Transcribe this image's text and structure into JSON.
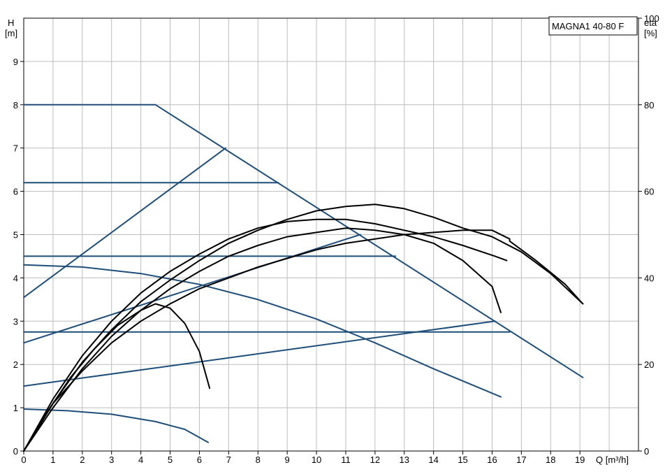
{
  "chart_data": {
    "type": "line",
    "model_label": "MAGNA1 40-80 F",
    "y_label_top": "H",
    "y_label_unit": "[m]",
    "y2_label_top": "eta",
    "y2_label_unit": "[%]",
    "x_label": "Q [m³/h]",
    "xlim": [
      0,
      21
    ],
    "ylim": [
      0,
      10
    ],
    "y2lim": [
      0,
      100
    ],
    "x_ticks": [
      0,
      1,
      2,
      3,
      4,
      5,
      6,
      7,
      8,
      9,
      10,
      11,
      12,
      13,
      14,
      15,
      16,
      17,
      18,
      19
    ],
    "y_ticks": [
      0,
      1,
      2,
      3,
      4,
      5,
      6,
      7,
      8,
      9
    ],
    "y2_ticks": [
      0,
      20,
      40,
      60,
      80,
      100
    ],
    "grid": true,
    "colors": {
      "head_curves": "#1f4e79",
      "efficiency_curves": "#000000"
    },
    "series": [
      {
        "group": "head",
        "points": [
          [
            0,
            8
          ],
          [
            4.5,
            8
          ],
          [
            19.1,
            1.7
          ]
        ]
      },
      {
        "group": "head",
        "points": [
          [
            0,
            6.2
          ],
          [
            8.7,
            6.2
          ]
        ]
      },
      {
        "group": "head",
        "points": [
          [
            0,
            4.5
          ],
          [
            12.7,
            4.5
          ]
        ]
      },
      {
        "group": "head",
        "points": [
          [
            0,
            2.75
          ],
          [
            16.6,
            2.75
          ]
        ]
      },
      {
        "group": "head",
        "points": [
          [
            0,
            3.55
          ],
          [
            6.9,
            7.0
          ]
        ]
      },
      {
        "group": "head",
        "points": [
          [
            0,
            2.5
          ],
          [
            11.5,
            5.0
          ]
        ]
      },
      {
        "group": "head",
        "points": [
          [
            0,
            1.5
          ],
          [
            16.1,
            3.0
          ]
        ]
      },
      {
        "group": "head",
        "points": [
          [
            0,
            4.3
          ],
          [
            2,
            4.25
          ],
          [
            4,
            4.1
          ],
          [
            6,
            3.85
          ],
          [
            8,
            3.5
          ],
          [
            10,
            3.05
          ],
          [
            12,
            2.5
          ],
          [
            14,
            1.9
          ],
          [
            16.3,
            1.25
          ]
        ]
      },
      {
        "group": "head",
        "points": [
          [
            0,
            0.97
          ],
          [
            1.5,
            0.93
          ],
          [
            3,
            0.85
          ],
          [
            4.5,
            0.68
          ],
          [
            5.5,
            0.5
          ],
          [
            6.3,
            0.2
          ]
        ]
      },
      {
        "group": "eta",
        "points": [
          [
            0,
            0
          ],
          [
            1,
            11
          ],
          [
            2,
            18.5
          ],
          [
            3,
            25
          ],
          [
            4,
            30
          ],
          [
            5,
            34
          ],
          [
            6,
            37.5
          ],
          [
            7,
            40
          ],
          [
            8,
            42.5
          ],
          [
            9,
            44.5
          ],
          [
            10,
            46.5
          ],
          [
            11,
            48
          ],
          [
            12,
            49
          ],
          [
            13,
            50
          ],
          [
            14,
            50.5
          ],
          [
            15,
            51
          ],
          [
            16,
            51
          ],
          [
            16.6,
            49
          ],
          [
            16.6,
            48.5
          ],
          [
            17.5,
            44
          ],
          [
            18.5,
            38.5
          ],
          [
            19.1,
            34
          ]
        ]
      },
      {
        "group": "eta",
        "points": [
          [
            0,
            0
          ],
          [
            1,
            11
          ],
          [
            2,
            20.5
          ],
          [
            3,
            28
          ],
          [
            4,
            34.5
          ],
          [
            5,
            39.5
          ],
          [
            6,
            44
          ],
          [
            7,
            48
          ],
          [
            8,
            51
          ],
          [
            9,
            53.5
          ],
          [
            10,
            55.5
          ],
          [
            11,
            56.5
          ],
          [
            12,
            57
          ],
          [
            13,
            56
          ],
          [
            14,
            54
          ],
          [
            15,
            51.5
          ],
          [
            16,
            49.5
          ],
          [
            17,
            46
          ],
          [
            18,
            41
          ],
          [
            19.1,
            34
          ]
        ]
      },
      {
        "group": "eta",
        "points": [
          [
            0,
            0
          ],
          [
            1,
            12
          ],
          [
            2,
            22
          ],
          [
            3,
            30
          ],
          [
            4,
            36.5
          ],
          [
            5,
            41.5
          ],
          [
            6,
            45.5
          ],
          [
            7,
            49
          ],
          [
            8,
            51.5
          ],
          [
            9,
            53
          ],
          [
            10,
            53.5
          ],
          [
            11,
            53.5
          ],
          [
            12,
            52.5
          ],
          [
            13,
            51
          ],
          [
            14,
            49.5
          ],
          [
            15,
            47.5
          ],
          [
            16.1,
            45
          ],
          [
            16.5,
            44
          ]
        ]
      },
      {
        "group": "eta",
        "points": [
          [
            0,
            0
          ],
          [
            1,
            10
          ],
          [
            2,
            19
          ],
          [
            3,
            26.5
          ],
          [
            4,
            32.5
          ],
          [
            5,
            37.5
          ],
          [
            6,
            41.5
          ],
          [
            7,
            45
          ],
          [
            8,
            47.5
          ],
          [
            9,
            49.5
          ],
          [
            10,
            50.5
          ],
          [
            11,
            51.5
          ],
          [
            12,
            51
          ],
          [
            13,
            50
          ],
          [
            14,
            48
          ],
          [
            15,
            44
          ],
          [
            16,
            38
          ],
          [
            16.3,
            32
          ]
        ]
      },
      {
        "group": "eta",
        "points": [
          [
            0,
            0
          ],
          [
            0.8,
            9
          ],
          [
            1.6,
            17
          ],
          [
            2.4,
            23.5
          ],
          [
            3.2,
            29
          ],
          [
            4,
            32.5
          ],
          [
            4.5,
            34
          ],
          [
            5,
            33
          ],
          [
            5.5,
            29.5
          ],
          [
            6,
            23
          ],
          [
            6.35,
            14.5
          ]
        ]
      }
    ]
  }
}
